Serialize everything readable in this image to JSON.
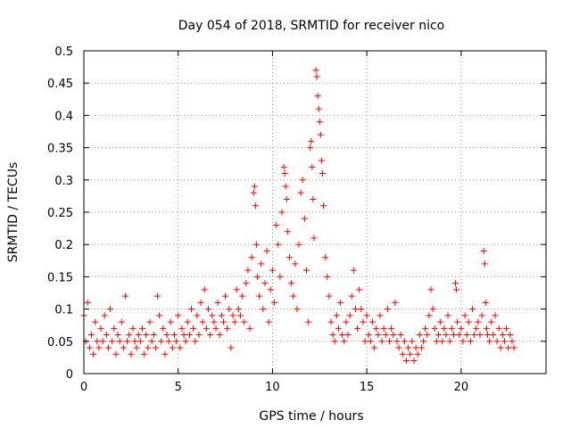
{
  "chart_data": {
    "type": "scatter",
    "title": "Day 054 of 2018, SRMTID for receiver nico",
    "xlabel": "GPS time / hours",
    "ylabel": "SRMTID / TECUs",
    "xlim": [
      0,
      24.5
    ],
    "ylim": [
      0,
      0.5
    ],
    "x_ticks": [
      0,
      5,
      10,
      15,
      20
    ],
    "y_ticks": [
      0,
      0.05,
      0.1,
      0.15,
      0.2,
      0.25,
      0.3,
      0.35,
      0.4,
      0.45,
      0.5
    ],
    "x_tick_labels": [
      "0",
      "5",
      "10",
      "15",
      "20"
    ],
    "y_tick_labels": [
      "0",
      "0.05",
      "0.1",
      "0.15",
      "0.2",
      "0.25",
      "0.3",
      "0.35",
      "0.4",
      "0.45",
      "0.5"
    ],
    "grid": true,
    "marker": "+",
    "color": "#ff0000",
    "series": [
      {
        "points": [
          [
            0.0,
            0.09
          ],
          [
            0.1,
            0.05
          ],
          [
            0.2,
            0.11
          ],
          [
            0.3,
            0.04
          ],
          [
            0.4,
            0.06
          ],
          [
            0.5,
            0.03
          ],
          [
            0.6,
            0.08
          ],
          [
            0.7,
            0.05
          ],
          [
            0.8,
            0.04
          ],
          [
            0.9,
            0.07
          ],
          [
            1.0,
            0.05
          ],
          [
            1.1,
            0.09
          ],
          [
            1.2,
            0.06
          ],
          [
            1.3,
            0.04
          ],
          [
            1.4,
            0.1
          ],
          [
            1.5,
            0.05
          ],
          [
            1.6,
            0.07
          ],
          [
            1.7,
            0.03
          ],
          [
            1.8,
            0.06
          ],
          [
            1.9,
            0.05
          ],
          [
            2.0,
            0.08
          ],
          [
            2.1,
            0.04
          ],
          [
            2.2,
            0.12
          ],
          [
            2.3,
            0.05
          ],
          [
            2.4,
            0.06
          ],
          [
            2.5,
            0.03
          ],
          [
            2.6,
            0.07
          ],
          [
            2.7,
            0.05
          ],
          [
            2.8,
            0.04
          ],
          [
            2.9,
            0.06
          ],
          [
            3.0,
            0.05
          ],
          [
            3.1,
            0.07
          ],
          [
            3.2,
            0.03
          ],
          [
            3.3,
            0.06
          ],
          [
            3.4,
            0.04
          ],
          [
            3.5,
            0.08
          ],
          [
            3.6,
            0.05
          ],
          [
            3.7,
            0.06
          ],
          [
            3.8,
            0.04
          ],
          [
            3.9,
            0.12
          ],
          [
            4.0,
            0.09
          ],
          [
            4.1,
            0.05
          ],
          [
            4.2,
            0.07
          ],
          [
            4.3,
            0.03
          ],
          [
            4.4,
            0.06
          ],
          [
            4.5,
            0.05
          ],
          [
            4.6,
            0.08
          ],
          [
            4.7,
            0.04
          ],
          [
            4.8,
            0.06
          ],
          [
            4.9,
            0.05
          ],
          [
            5.0,
            0.09
          ],
          [
            5.1,
            0.04
          ],
          [
            5.2,
            0.07
          ],
          [
            5.3,
            0.06
          ],
          [
            5.4,
            0.05
          ],
          [
            5.5,
            0.08
          ],
          [
            5.6,
            0.06
          ],
          [
            5.7,
            0.1
          ],
          [
            5.8,
            0.07
          ],
          [
            5.9,
            0.05
          ],
          [
            6.0,
            0.09
          ],
          [
            6.1,
            0.06
          ],
          [
            6.2,
            0.11
          ],
          [
            6.3,
            0.08
          ],
          [
            6.4,
            0.13
          ],
          [
            6.5,
            0.07
          ],
          [
            6.6,
            0.1
          ],
          [
            6.7,
            0.06
          ],
          [
            6.8,
            0.09
          ],
          [
            6.9,
            0.08
          ],
          [
            7.0,
            0.07
          ],
          [
            7.1,
            0.11
          ],
          [
            7.2,
            0.06
          ],
          [
            7.3,
            0.09
          ],
          [
            7.4,
            0.08
          ],
          [
            7.5,
            0.12
          ],
          [
            7.6,
            0.07
          ],
          [
            7.7,
            0.1
          ],
          [
            7.8,
            0.04
          ],
          [
            7.9,
            0.09
          ],
          [
            8.0,
            0.08
          ],
          [
            8.1,
            0.13
          ],
          [
            8.2,
            0.1
          ],
          [
            8.3,
            0.09
          ],
          [
            8.4,
            0.12
          ],
          [
            8.5,
            0.08
          ],
          [
            8.6,
            0.14
          ],
          [
            8.7,
            0.16
          ],
          [
            8.8,
            0.07
          ],
          [
            8.9,
            0.18
          ],
          [
            9.0,
            0.28
          ],
          [
            9.05,
            0.29
          ],
          [
            9.1,
            0.26
          ],
          [
            9.15,
            0.2
          ],
          [
            9.2,
            0.15
          ],
          [
            9.3,
            0.12
          ],
          [
            9.4,
            0.17
          ],
          [
            9.5,
            0.1
          ],
          [
            9.6,
            0.14
          ],
          [
            9.7,
            0.19
          ],
          [
            9.8,
            0.08
          ],
          [
            9.9,
            0.13
          ],
          [
            10.0,
            0.16
          ],
          [
            10.1,
            0.11
          ],
          [
            10.2,
            0.23
          ],
          [
            10.3,
            0.2
          ],
          [
            10.4,
            0.15
          ],
          [
            10.5,
            0.25
          ],
          [
            10.6,
            0.32
          ],
          [
            10.65,
            0.31
          ],
          [
            10.7,
            0.29
          ],
          [
            10.75,
            0.27
          ],
          [
            10.8,
            0.22
          ],
          [
            10.9,
            0.18
          ],
          [
            11.0,
            0.14
          ],
          [
            11.1,
            0.12
          ],
          [
            11.2,
            0.17
          ],
          [
            11.3,
            0.1
          ],
          [
            11.4,
            0.2
          ],
          [
            11.5,
            0.28
          ],
          [
            11.6,
            0.3
          ],
          [
            11.7,
            0.24
          ],
          [
            11.8,
            0.16
          ],
          [
            11.9,
            0.08
          ],
          [
            12.0,
            0.35
          ],
          [
            12.05,
            0.36
          ],
          [
            12.1,
            0.32
          ],
          [
            12.15,
            0.27
          ],
          [
            12.2,
            0.21
          ],
          [
            12.3,
            0.47
          ],
          [
            12.35,
            0.46
          ],
          [
            12.4,
            0.43
          ],
          [
            12.45,
            0.41
          ],
          [
            12.5,
            0.39
          ],
          [
            12.55,
            0.37
          ],
          [
            12.6,
            0.33
          ],
          [
            12.65,
            0.31
          ],
          [
            12.7,
            0.26
          ],
          [
            12.8,
            0.18
          ],
          [
            12.9,
            0.15
          ],
          [
            13.0,
            0.12
          ],
          [
            13.1,
            0.08
          ],
          [
            13.2,
            0.06
          ],
          [
            13.3,
            0.05
          ],
          [
            13.4,
            0.09
          ],
          [
            13.5,
            0.07
          ],
          [
            13.6,
            0.11
          ],
          [
            13.7,
            0.06
          ],
          [
            13.8,
            0.05
          ],
          [
            13.9,
            0.08
          ],
          [
            14.0,
            0.06
          ],
          [
            14.1,
            0.09
          ],
          [
            14.2,
            0.12
          ],
          [
            14.3,
            0.16
          ],
          [
            14.4,
            0.1
          ],
          [
            14.5,
            0.07
          ],
          [
            14.6,
            0.13
          ],
          [
            14.7,
            0.1
          ],
          [
            14.8,
            0.08
          ],
          [
            14.9,
            0.05
          ],
          [
            15.0,
            0.09
          ],
          [
            15.1,
            0.06
          ],
          [
            15.2,
            0.05
          ],
          [
            15.3,
            0.08
          ],
          [
            15.4,
            0.04
          ],
          [
            15.5,
            0.07
          ],
          [
            15.6,
            0.06
          ],
          [
            15.7,
            0.09
          ],
          [
            15.8,
            0.05
          ],
          [
            15.9,
            0.07
          ],
          [
            16.0,
            0.06
          ],
          [
            16.1,
            0.1
          ],
          [
            16.2,
            0.05
          ],
          [
            16.3,
            0.07
          ],
          [
            16.4,
            0.06
          ],
          [
            16.5,
            0.11
          ],
          [
            16.6,
            0.05
          ],
          [
            16.7,
            0.04
          ],
          [
            16.8,
            0.06
          ],
          [
            16.9,
            0.03
          ],
          [
            17.0,
            0.05
          ],
          [
            17.1,
            0.02
          ],
          [
            17.2,
            0.04
          ],
          [
            17.3,
            0.03
          ],
          [
            17.4,
            0.05
          ],
          [
            17.5,
            0.02
          ],
          [
            17.6,
            0.04
          ],
          [
            17.7,
            0.03
          ],
          [
            17.8,
            0.06
          ],
          [
            17.9,
            0.04
          ],
          [
            18.0,
            0.05
          ],
          [
            18.1,
            0.07
          ],
          [
            18.2,
            0.06
          ],
          [
            18.3,
            0.09
          ],
          [
            18.4,
            0.13
          ],
          [
            18.5,
            0.1
          ],
          [
            18.6,
            0.07
          ],
          [
            18.7,
            0.05
          ],
          [
            18.8,
            0.06
          ],
          [
            18.9,
            0.08
          ],
          [
            19.0,
            0.05
          ],
          [
            19.1,
            0.07
          ],
          [
            19.2,
            0.06
          ],
          [
            19.3,
            0.09
          ],
          [
            19.4,
            0.05
          ],
          [
            19.5,
            0.07
          ],
          [
            19.6,
            0.06
          ],
          [
            19.7,
            0.14
          ],
          [
            19.75,
            0.13
          ],
          [
            19.8,
            0.08
          ],
          [
            19.9,
            0.06
          ],
          [
            20.0,
            0.07
          ],
          [
            20.1,
            0.05
          ],
          [
            20.2,
            0.09
          ],
          [
            20.3,
            0.06
          ],
          [
            20.4,
            0.08
          ],
          [
            20.5,
            0.05
          ],
          [
            20.6,
            0.1
          ],
          [
            20.7,
            0.06
          ],
          [
            20.8,
            0.07
          ],
          [
            20.9,
            0.08
          ],
          [
            21.0,
            0.06
          ],
          [
            21.1,
            0.09
          ],
          [
            21.2,
            0.19
          ],
          [
            21.25,
            0.17
          ],
          [
            21.3,
            0.11
          ],
          [
            21.35,
            0.07
          ],
          [
            21.4,
            0.06
          ],
          [
            21.5,
            0.05
          ],
          [
            21.6,
            0.08
          ],
          [
            21.7,
            0.06
          ],
          [
            21.8,
            0.09
          ],
          [
            21.9,
            0.05
          ],
          [
            22.0,
            0.07
          ],
          [
            22.1,
            0.04
          ],
          [
            22.2,
            0.06
          ],
          [
            22.3,
            0.05
          ],
          [
            22.4,
            0.07
          ],
          [
            22.5,
            0.04
          ],
          [
            22.6,
            0.06
          ],
          [
            22.7,
            0.05
          ],
          [
            22.8,
            0.04
          ]
        ]
      }
    ]
  }
}
